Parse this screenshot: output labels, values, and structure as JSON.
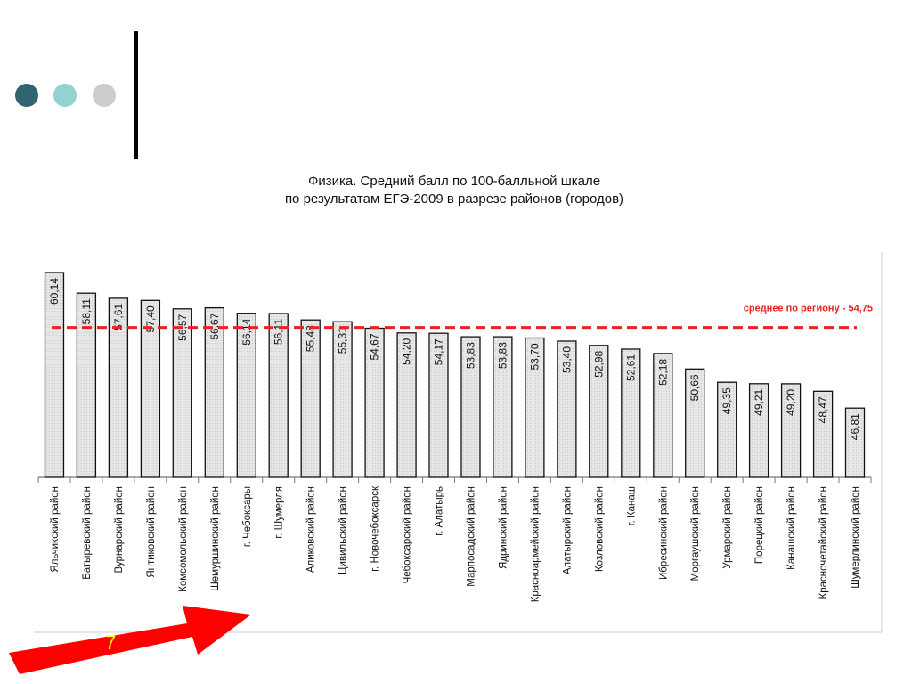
{
  "decor": {
    "dot_colors": [
      "#2f6470",
      "#93d2d2",
      "#cccccc"
    ],
    "line_color": "#000000",
    "arrow_color": "#ff0000"
  },
  "page_number": "7",
  "chart_data": {
    "type": "bar",
    "title": [
      "Физика. Средний балл по 100-балльной шкале",
      "по результатам ЕГЭ-2009 в разрезе районов (городов)"
    ],
    "categories": [
      "Яльчикский район",
      "Батыревский район",
      "Вурнарский район",
      "Янтиковский район",
      "Комсомольский район",
      "Шемуршинский район",
      "г. Чебоксары",
      "г. Шумерля",
      "Аликовский район",
      "Цивильский район",
      "г. Новочебоксарск",
      "Чебоксарский район",
      "г. Алатырь",
      "Марпосадский район",
      "Ядринский район",
      "Красноармейский район",
      "Алатырский район",
      "Козловский район",
      "г. Канаш",
      "Ибресинский район",
      "Моргаушский район",
      "Урмарский район",
      "Порецкий район",
      "Канашский район",
      "Красночетайский район",
      "Шумерлинский район"
    ],
    "values": [
      60.14,
      58.11,
      57.61,
      57.4,
      56.57,
      56.67,
      56.14,
      56.11,
      55.48,
      55.31,
      54.67,
      54.2,
      54.17,
      53.83,
      53.83,
      53.7,
      53.4,
      52.98,
      52.61,
      52.18,
      50.66,
      49.35,
      49.21,
      49.2,
      48.47,
      46.81
    ],
    "value_labels": [
      "60,14",
      "58,11",
      "57,61",
      "57,40",
      "56,57",
      "56,67",
      "56,14",
      "56,11",
      "55,48",
      "55,31",
      "54,67",
      "54,20",
      "54,17",
      "53,83",
      "53,83",
      "53,70",
      "53,40",
      "52,98",
      "52,61",
      "52,18",
      "50,66",
      "49,35",
      "49,21",
      "49,20",
      "48,47",
      "46,81"
    ],
    "ylim": [
      40,
      61
    ],
    "reference_line": {
      "value": 54.75,
      "label": "среднее по региону - 54,75",
      "color": "#e8231f",
      "style": "dashed"
    },
    "bar_color": "#e6e6e6",
    "bar_stroke": "#111111",
    "grid": false,
    "legend": "none"
  }
}
